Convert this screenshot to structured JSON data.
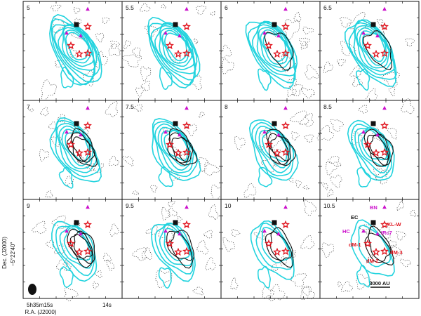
{
  "figure": {
    "panels": [
      {
        "velocity": "5"
      },
      {
        "velocity": "5.5"
      },
      {
        "velocity": "6"
      },
      {
        "velocity": "6.5"
      },
      {
        "velocity": "7"
      },
      {
        "velocity": "7.5"
      },
      {
        "velocity": "8"
      },
      {
        "velocity": "8.5"
      },
      {
        "velocity": "9"
      },
      {
        "velocity": "9.5"
      },
      {
        "velocity": "10"
      },
      {
        "velocity": "10.5"
      }
    ],
    "source_labels": {
      "bn": "BN",
      "ec": "EC",
      "kl_w": "KL-W",
      "hc": "HC",
      "irc7": "IRc7",
      "dm1": "dM-1",
      "dm2": "dM-2",
      "dm3": "dM-3"
    },
    "scale_bar": "3000 AU",
    "axes": {
      "ylabel": "Dec. (J2000)",
      "ytick": "−5°22′40″",
      "xlabel": "R.A. (J2000)",
      "xtick_left": "5h35m15s",
      "xtick_right": "14s"
    },
    "colors": {
      "contour_cyan": "#22d3de",
      "contour_black": "#111111",
      "marker_magenta": "#cc11cc",
      "marker_red": "#e0141e"
    }
  }
}
